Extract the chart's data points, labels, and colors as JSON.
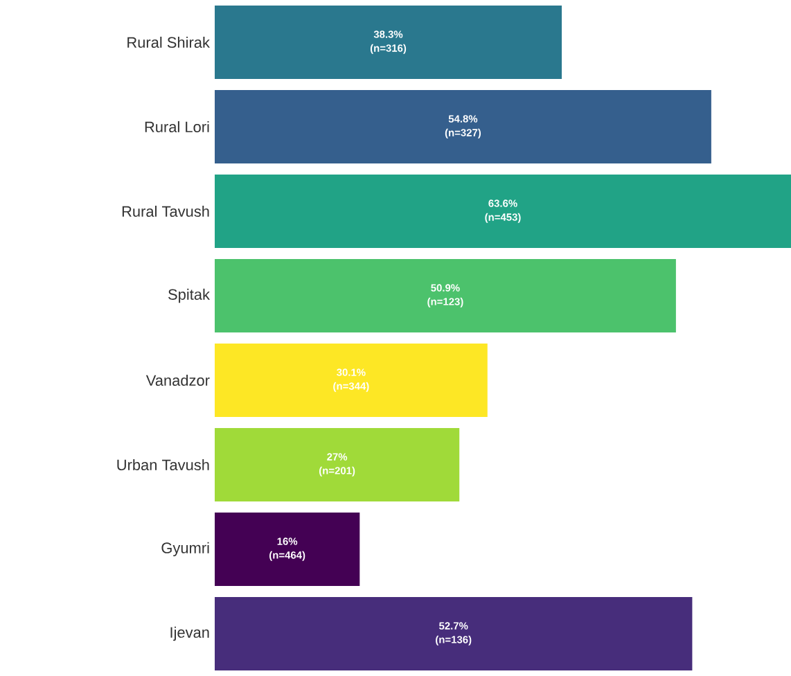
{
  "chart_data": {
    "type": "bar",
    "orientation": "horizontal",
    "categories": [
      "Rural Shirak",
      "Rural Lori",
      "Rural Tavush",
      "Spitak",
      "Vanadzor",
      "Urban Tavush",
      "Gyumri",
      "Ijevan"
    ],
    "values": [
      38.3,
      54.8,
      63.6,
      50.9,
      30.1,
      27,
      16,
      52.7
    ],
    "value_labels": [
      "38.3% (n=316)",
      "54.8% (n=327)",
      "63.6% (n=453)",
      "50.9% (n=123)",
      "30.1% (n=344)",
      "27% (n=201)",
      "16% (n=464)",
      "52.7% (n=136)"
    ],
    "colors": [
      "#2a788e",
      "#355f8d",
      "#21a386",
      "#4cc26c",
      "#fde725",
      "#a0da39",
      "#440154",
      "#472d7b"
    ]
  }
}
